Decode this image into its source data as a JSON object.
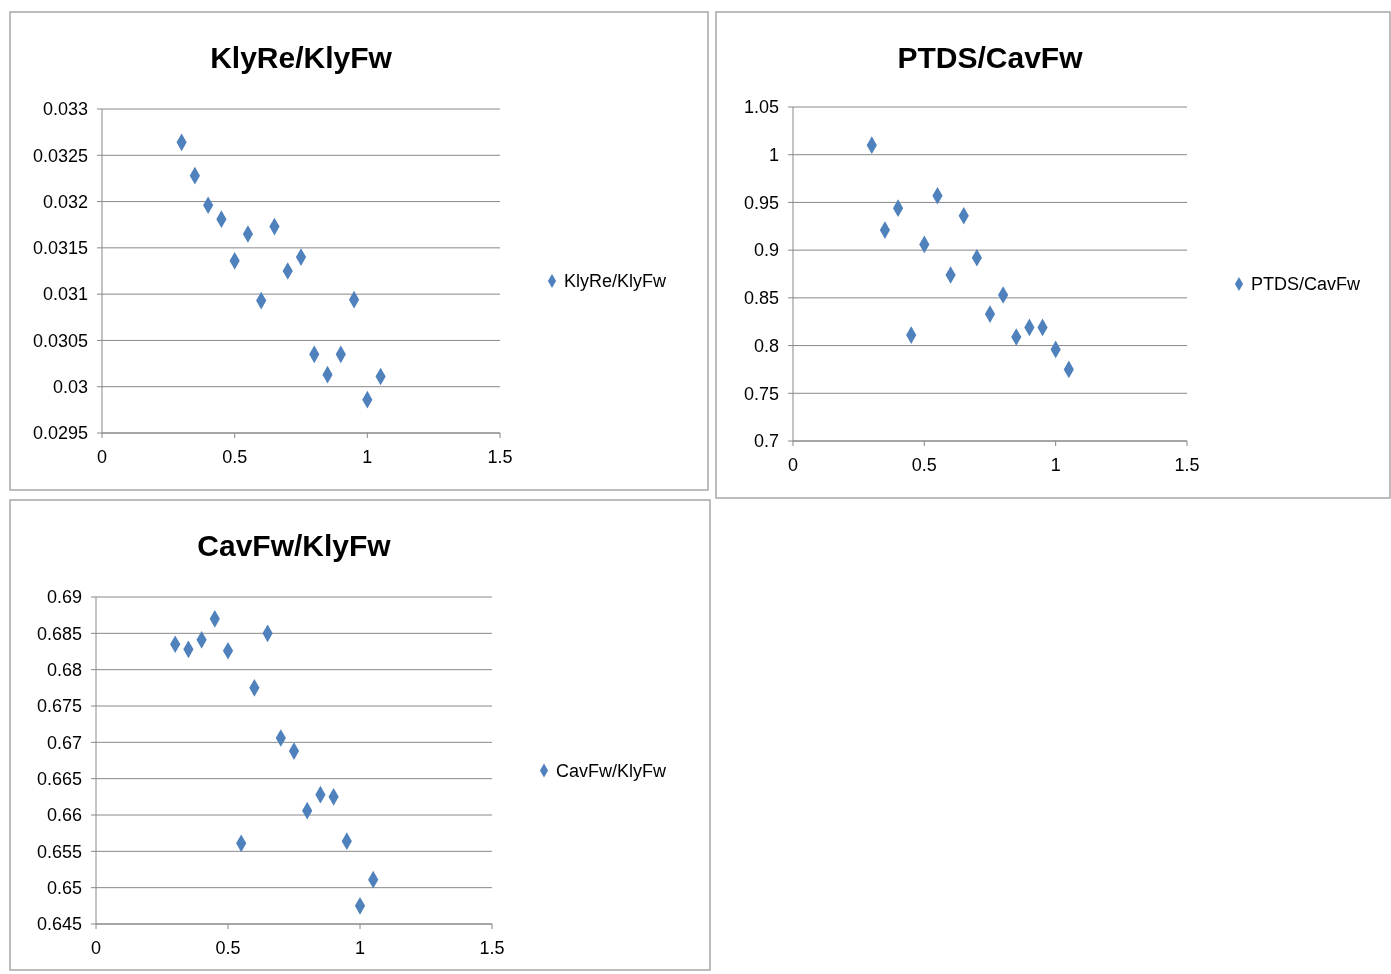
{
  "chart_data": [
    {
      "type": "scatter",
      "title": "KlyRe/KlyFw",
      "marker": "diamond",
      "grid": "y",
      "legend": "right",
      "xlim": [
        0,
        1.5
      ],
      "xticks": [
        0,
        0.5,
        1,
        1.5
      ],
      "ylim": [
        0.0295,
        0.033
      ],
      "yticks": [
        0.0295,
        0.03,
        0.0305,
        0.031,
        0.0315,
        0.032,
        0.0325,
        0.033
      ],
      "series": [
        {
          "name": "KlyRe/KlyFw",
          "color": "#4f81bd",
          "x": [
            0.3,
            0.35,
            0.4,
            0.45,
            0.5,
            0.55,
            0.6,
            0.65,
            0.7,
            0.75,
            0.8,
            0.85,
            0.9,
            0.95,
            1.0,
            1.05
          ],
          "values": [
            0.03264,
            0.03228,
            0.03196,
            0.03181,
            0.03136,
            0.03165,
            0.03093,
            0.03173,
            0.03125,
            0.0314,
            0.03035,
            0.03013,
            0.03035,
            0.03094,
            0.02986,
            0.03011
          ]
        }
      ]
    },
    {
      "type": "scatter",
      "title": "PTDS/CavFw",
      "marker": "diamond",
      "grid": "y",
      "legend": "right",
      "xlim": [
        0,
        1.5
      ],
      "xticks": [
        0,
        0.5,
        1,
        1.5
      ],
      "ylim": [
        0.7,
        1.05
      ],
      "yticks": [
        0.7,
        0.75,
        0.8,
        0.85,
        0.9,
        0.95,
        1,
        1.05
      ],
      "series": [
        {
          "name": "PTDS/CavFw",
          "color": "#4f81bd",
          "x": [
            0.3,
            0.35,
            0.4,
            0.45,
            0.5,
            0.55,
            0.6,
            0.65,
            0.7,
            0.75,
            0.8,
            0.85,
            0.9,
            0.95,
            1.0,
            1.05
          ],
          "values": [
            1.01,
            0.921,
            0.944,
            0.811,
            0.906,
            0.957,
            0.874,
            0.936,
            0.892,
            0.833,
            0.853,
            0.809,
            0.819,
            0.819,
            0.796,
            0.775
          ]
        }
      ]
    },
    {
      "type": "scatter",
      "title": "CavFw/KlyFw",
      "marker": "diamond",
      "grid": "y",
      "legend": "right",
      "xlim": [
        0,
        1.5
      ],
      "xticks": [
        0,
        0.5,
        1,
        1.5
      ],
      "ylim": [
        0.645,
        0.69
      ],
      "yticks": [
        0.645,
        0.65,
        0.655,
        0.66,
        0.665,
        0.67,
        0.675,
        0.68,
        0.685,
        0.69
      ],
      "series": [
        {
          "name": "CavFw/KlyFw",
          "color": "#4f81bd",
          "x": [
            0.3,
            0.35,
            0.4,
            0.45,
            0.5,
            0.55,
            0.6,
            0.65,
            0.7,
            0.75,
            0.8,
            0.85,
            0.9,
            0.95,
            1.0,
            1.05
          ],
          "values": [
            0.6835,
            0.6828,
            0.6841,
            0.687,
            0.6826,
            0.6561,
            0.6775,
            0.685,
            0.6706,
            0.6688,
            0.6606,
            0.6628,
            0.6625,
            0.6564,
            0.6475,
            0.6511
          ]
        }
      ]
    }
  ]
}
